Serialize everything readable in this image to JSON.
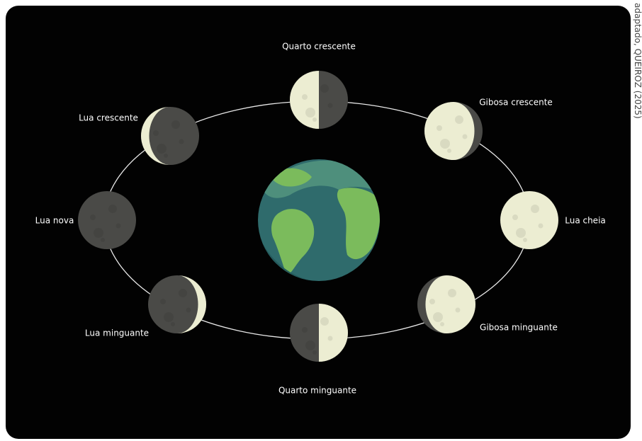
{
  "title": null,
  "phases": [
    {
      "label": "Quarto crescente"
    },
    {
      "label": "Gibosa crescente"
    },
    {
      "label": "Lua cheia"
    },
    {
      "label": "Gibosa minguante"
    },
    {
      "label": "Quarto minguante"
    },
    {
      "label": "Lua minguante"
    },
    {
      "label": "Lua nova"
    },
    {
      "label": "Lua crescente"
    }
  ],
  "credit": "adaptado, QUEIROZ (2025)"
}
